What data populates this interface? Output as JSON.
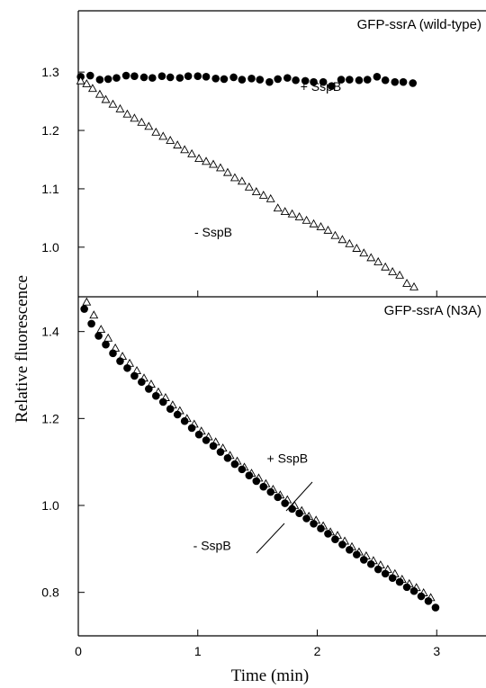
{
  "chart_data": [
    {
      "type": "scatter",
      "title": "GFP-ssrA (wild-type)",
      "ylim": [
        0.915,
        1.405
      ],
      "xlim": [
        0,
        3.45
      ],
      "yticks": [
        1.0,
        1.1,
        1.2,
        1.3
      ],
      "ytick_labels": [
        "1.0",
        "1.1",
        "1.2",
        "1.3"
      ],
      "annotations": [
        {
          "text": "+ SspB",
          "x": 2.03,
          "y": 1.268
        },
        {
          "text": "- SspB",
          "x": 1.13,
          "y": 1.018
        }
      ],
      "series": [
        {
          "name": "+ SspB",
          "marker": "filled-circle",
          "x": [
            0.02,
            0.1,
            0.18,
            0.25,
            0.32,
            0.4,
            0.47,
            0.55,
            0.62,
            0.7,
            0.77,
            0.85,
            0.92,
            1.0,
            1.07,
            1.15,
            1.22,
            1.3,
            1.37,
            1.45,
            1.52,
            1.6,
            1.67,
            1.75,
            1.82,
            1.9,
            1.97,
            2.05,
            2.12,
            2.2,
            2.27,
            2.35,
            2.42,
            2.5,
            2.57,
            2.65,
            2.72,
            2.8
          ],
          "y": [
            1.292,
            1.294,
            1.287,
            1.288,
            1.29,
            1.294,
            1.293,
            1.291,
            1.29,
            1.293,
            1.291,
            1.29,
            1.293,
            1.293,
            1.292,
            1.289,
            1.288,
            1.291,
            1.287,
            1.289,
            1.287,
            1.283,
            1.288,
            1.29,
            1.286,
            1.285,
            1.283,
            1.283,
            1.276,
            1.287,
            1.287,
            1.286,
            1.287,
            1.292,
            1.286,
            1.283,
            1.283,
            1.281
          ]
        },
        {
          "name": "- SspB",
          "marker": "open-triangle",
          "x": [
            0.02,
            0.07,
            0.12,
            0.18,
            0.23,
            0.29,
            0.35,
            0.41,
            0.47,
            0.53,
            0.59,
            0.65,
            0.71,
            0.77,
            0.83,
            0.89,
            0.95,
            1.01,
            1.07,
            1.13,
            1.19,
            1.25,
            1.31,
            1.37,
            1.43,
            1.49,
            1.55,
            1.61,
            1.67,
            1.73,
            1.79,
            1.85,
            1.91,
            1.97,
            2.03,
            2.09,
            2.15,
            2.21,
            2.27,
            2.33,
            2.39,
            2.45,
            2.51,
            2.57,
            2.63,
            2.69,
            2.75,
            2.81
          ],
          "y": [
            1.285,
            1.28,
            1.272,
            1.262,
            1.253,
            1.245,
            1.237,
            1.228,
            1.221,
            1.214,
            1.207,
            1.197,
            1.19,
            1.183,
            1.175,
            1.167,
            1.16,
            1.152,
            1.147,
            1.142,
            1.136,
            1.128,
            1.119,
            1.113,
            1.103,
            1.095,
            1.089,
            1.083,
            1.067,
            1.061,
            1.057,
            1.052,
            1.046,
            1.04,
            1.035,
            1.029,
            1.02,
            1.013,
            1.006,
            0.998,
            0.99,
            0.982,
            0.975,
            0.966,
            0.958,
            0.952,
            0.938,
            0.932
          ]
        }
      ]
    },
    {
      "type": "scatter",
      "title": "GFP-ssrA (N3A)",
      "ylim": [
        0.7,
        1.48
      ],
      "xlim": [
        0,
        3.45
      ],
      "yticks": [
        0.8,
        1.0,
        1.2,
        1.4
      ],
      "ytick_labels": [
        "0.8",
        "1.0",
        "1.2",
        "1.4"
      ],
      "xticks": [
        0,
        1,
        2,
        3
      ],
      "xtick_labels": [
        "0",
        "1",
        "2",
        "3"
      ],
      "annotations": [
        {
          "text": "+ SspB",
          "x": 1.75,
          "y": 1.098
        },
        {
          "text": "- SspB",
          "x": 1.12,
          "y": 0.898
        }
      ],
      "series": [
        {
          "name": "- SspB",
          "marker": "open-triangle",
          "x": [
            0.07,
            0.13,
            0.19,
            0.25,
            0.31,
            0.37,
            0.43,
            0.49,
            0.55,
            0.61,
            0.67,
            0.73,
            0.79,
            0.85,
            0.91,
            0.97,
            1.03,
            1.09,
            1.15,
            1.21,
            1.27,
            1.33,
            1.39,
            1.45,
            1.51,
            1.57,
            1.63,
            1.69,
            1.75,
            1.81,
            1.87,
            1.93,
            1.99,
            2.05,
            2.11,
            2.17,
            2.23,
            2.29,
            2.35,
            2.41,
            2.47,
            2.53,
            2.59,
            2.65,
            2.71,
            2.77,
            2.83,
            2.89,
            2.95
          ],
          "y": [
            1.468,
            1.438,
            1.405,
            1.385,
            1.362,
            1.343,
            1.327,
            1.31,
            1.293,
            1.279,
            1.261,
            1.248,
            1.231,
            1.218,
            1.2,
            1.187,
            1.171,
            1.158,
            1.146,
            1.132,
            1.115,
            1.102,
            1.088,
            1.074,
            1.063,
            1.05,
            1.037,
            1.024,
            1.013,
            1.0,
            0.988,
            0.975,
            0.966,
            0.953,
            0.939,
            0.931,
            0.918,
            0.905,
            0.893,
            0.884,
            0.873,
            0.863,
            0.853,
            0.843,
            0.83,
            0.82,
            0.811,
            0.799,
            0.788
          ]
        },
        {
          "name": "+ SspB",
          "marker": "filled-circle",
          "x": [
            0.05,
            0.11,
            0.17,
            0.23,
            0.29,
            0.35,
            0.41,
            0.47,
            0.53,
            0.59,
            0.65,
            0.71,
            0.77,
            0.83,
            0.89,
            0.95,
            1.01,
            1.07,
            1.13,
            1.19,
            1.25,
            1.31,
            1.37,
            1.43,
            1.49,
            1.55,
            1.61,
            1.67,
            1.73,
            1.79,
            1.85,
            1.91,
            1.97,
            2.03,
            2.09,
            2.15,
            2.21,
            2.27,
            2.33,
            2.39,
            2.45,
            2.51,
            2.57,
            2.63,
            2.69,
            2.75,
            2.81,
            2.87,
            2.93,
            2.99
          ],
          "y": [
            1.452,
            1.418,
            1.39,
            1.37,
            1.35,
            1.332,
            1.316,
            1.298,
            1.284,
            1.268,
            1.252,
            1.238,
            1.222,
            1.209,
            1.194,
            1.178,
            1.163,
            1.15,
            1.137,
            1.123,
            1.109,
            1.095,
            1.083,
            1.069,
            1.056,
            1.043,
            1.031,
            1.019,
            1.005,
            0.992,
            0.982,
            0.97,
            0.958,
            0.947,
            0.935,
            0.922,
            0.91,
            0.898,
            0.887,
            0.875,
            0.865,
            0.853,
            0.843,
            0.833,
            0.824,
            0.812,
            0.803,
            0.791,
            0.78,
            0.765
          ]
        }
      ]
    }
  ],
  "axis_titles": {
    "ylabel": "Relative fluorescence",
    "xlabel": "Time (min)"
  }
}
